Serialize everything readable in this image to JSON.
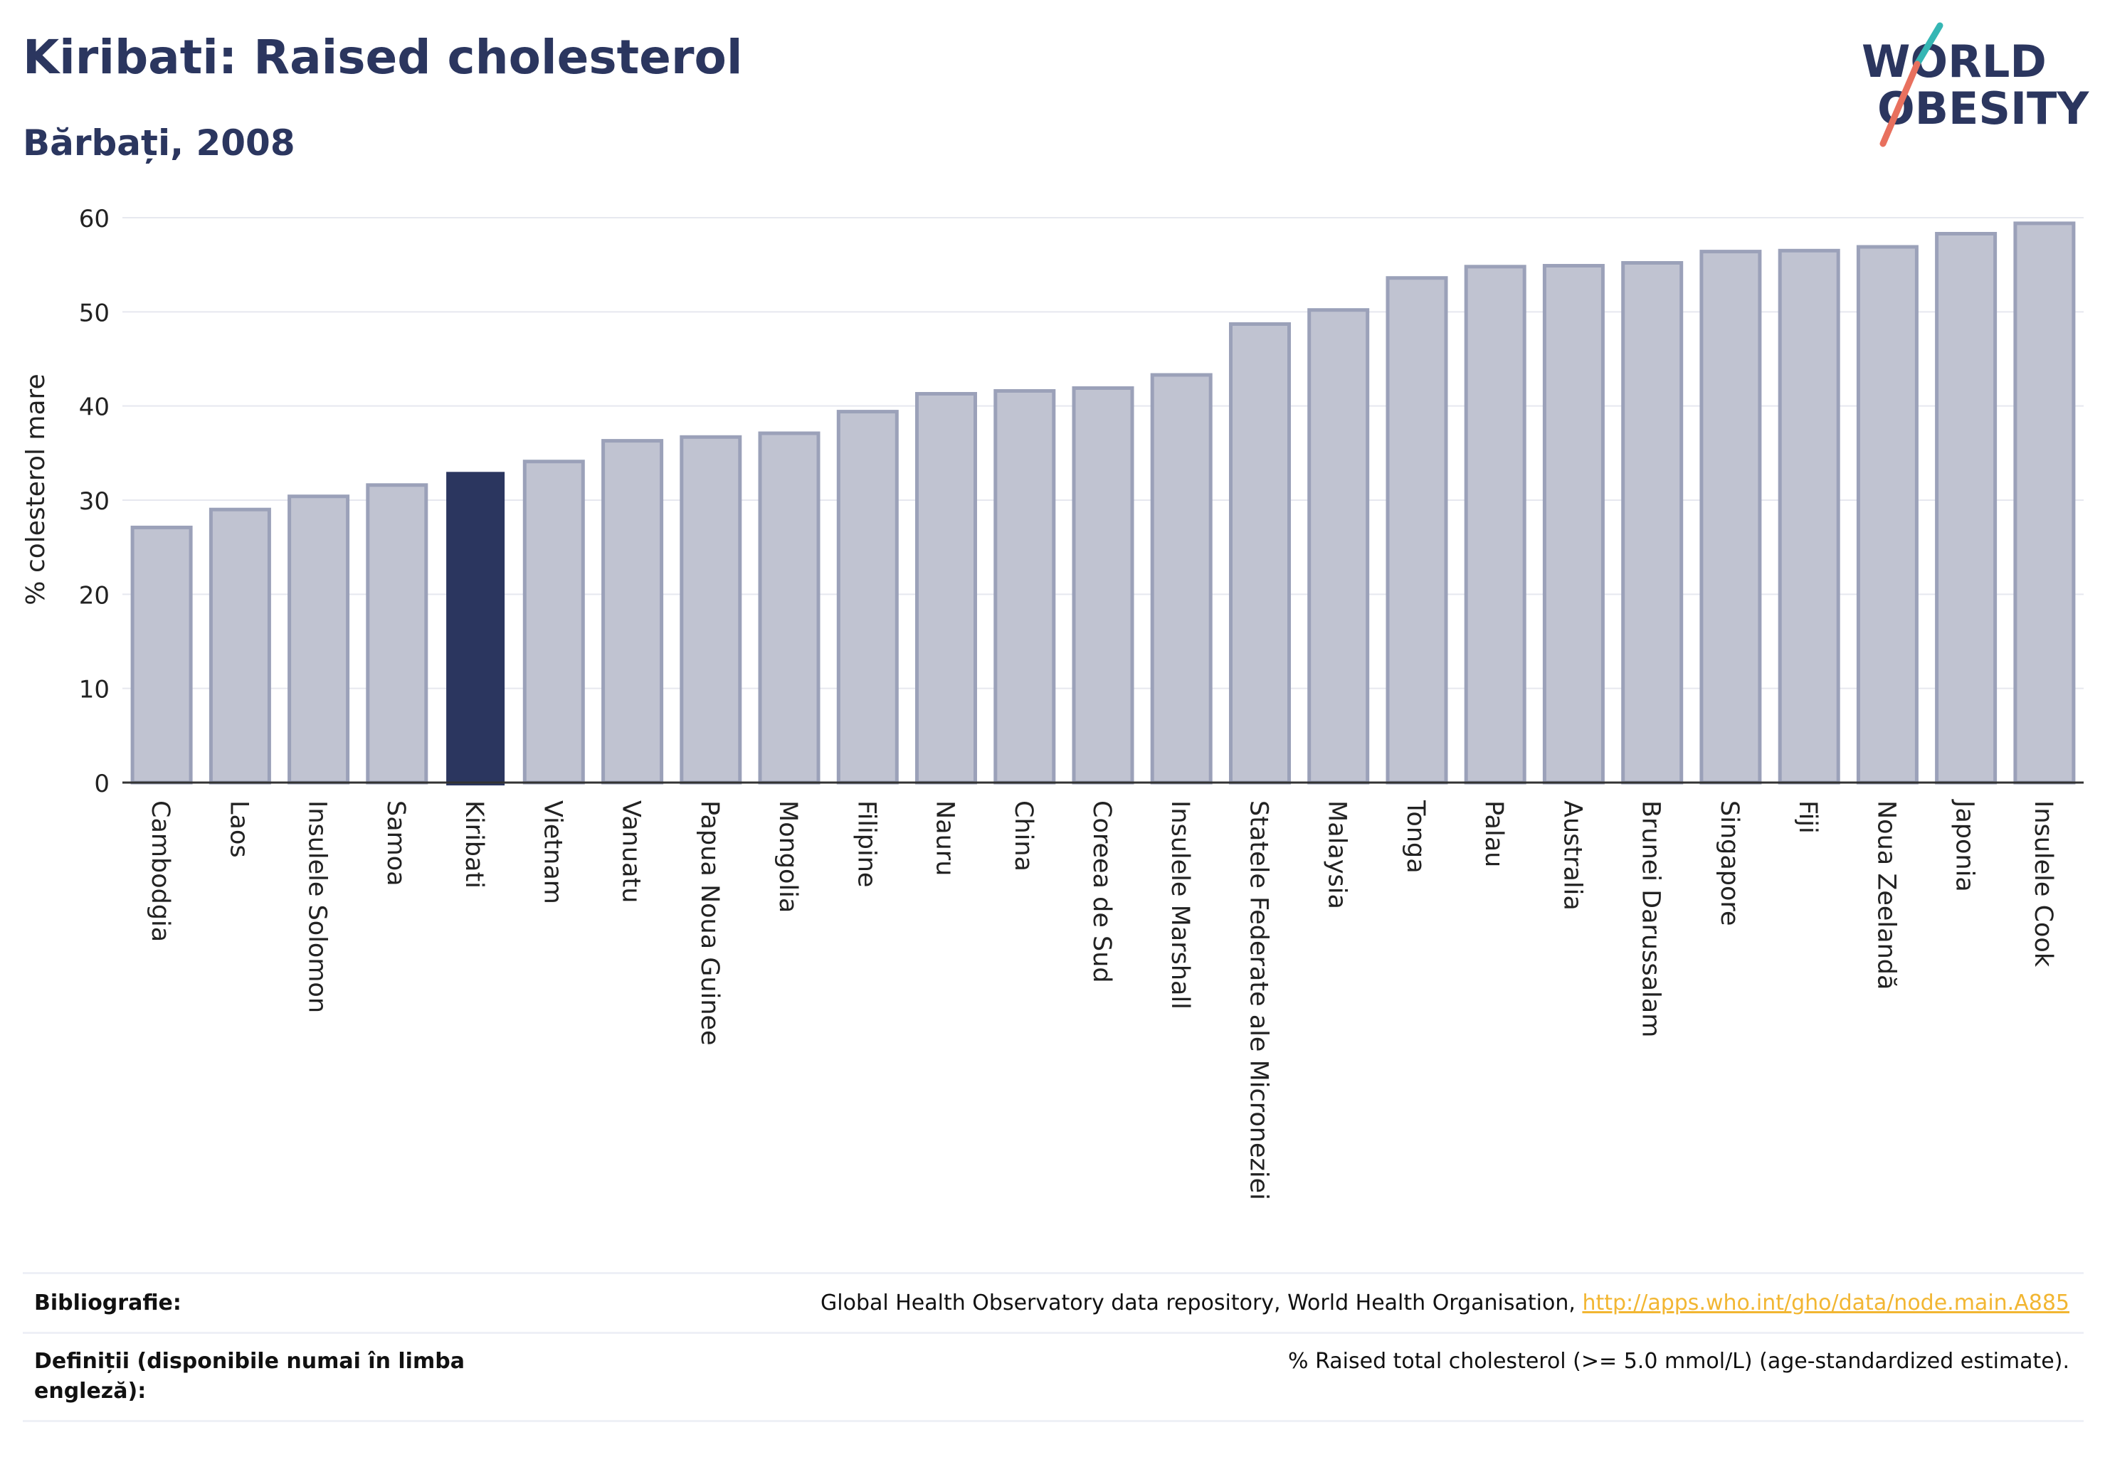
{
  "header": {
    "title": "Kiribati: Raised cholesterol",
    "subtitle": "Bărbați, 2008"
  },
  "logo": {
    "line1": "WORLD",
    "line2": "OBESITY",
    "accent_teal": "#35b6b4",
    "accent_coral": "#e8705e"
  },
  "colors": {
    "highlight": "#2b365f",
    "bar_fill": "#c0c3d1",
    "bar_stroke": "#9ba1b9"
  },
  "chart_data": {
    "type": "bar",
    "ylabel": "% colesterol mare",
    "ylim": [
      0,
      60
    ],
    "yticks": [
      0,
      10,
      20,
      30,
      40,
      50,
      60
    ],
    "grid": true,
    "highlight": "Kiribati",
    "categories": [
      "Cambodgia",
      "Laos",
      "Insulele Solomon",
      "Samoa",
      "Kiribati",
      "Vietnam",
      "Vanuatu",
      "Papua Noua Guinee",
      "Mongolia",
      "Filipine",
      "Nauru",
      "China",
      "Coreea de Sud",
      "Insulele Marshall",
      "Statele Federate ale Microneziei",
      "Malaysia",
      "Tonga",
      "Palau",
      "Australia",
      "Brunei Darussalam",
      "Singapore",
      "Fiji",
      "Noua Zeelandă",
      "Japonia",
      "Insulele Cook"
    ],
    "values": [
      27.1,
      29.0,
      30.4,
      31.6,
      33.0,
      34.1,
      36.3,
      36.7,
      37.1,
      39.4,
      41.3,
      41.6,
      41.9,
      43.3,
      48.7,
      50.2,
      53.6,
      54.8,
      54.9,
      55.2,
      56.4,
      56.5,
      56.9,
      58.3,
      59.4
    ]
  },
  "footer": {
    "bibliography_label": "Bibliografie:",
    "bibliography_text": "Global Health Observatory data repository, World Health Organisation, ",
    "bibliography_link": "http://apps.who.int/gho/data/node.main.A885",
    "definitions_label_line1": "Definiții (disponibile numai în limba",
    "definitions_label_line2": "engleză):",
    "definitions_text": "% Raised total cholesterol (>= 5.0 mmol/L) (age-standardized estimate)."
  }
}
